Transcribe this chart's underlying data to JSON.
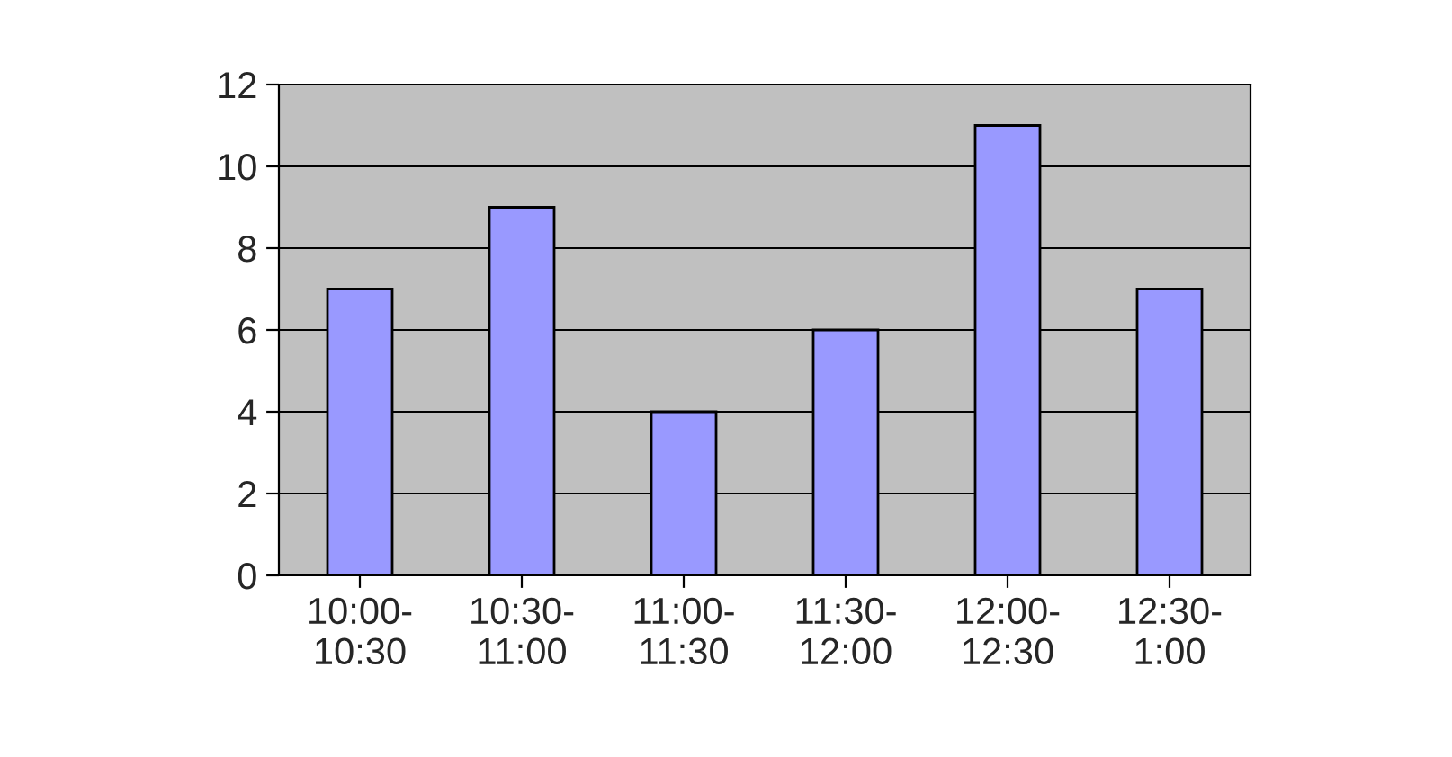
{
  "chart_data": {
    "type": "bar",
    "categories": [
      "10:00-\n10:30",
      "10:30-\n11:00",
      "11:00-\n11:30",
      "11:30-\n12:00",
      "12:00-\n12:30",
      "12:30-\n1:00"
    ],
    "values": [
      7,
      9,
      4,
      6,
      11,
      7
    ],
    "color": "#9999ff",
    "ylim": [
      0,
      12
    ],
    "yticks": [
      0,
      2,
      4,
      6,
      8,
      10,
      12
    ],
    "grid": "y",
    "legend": false
  }
}
